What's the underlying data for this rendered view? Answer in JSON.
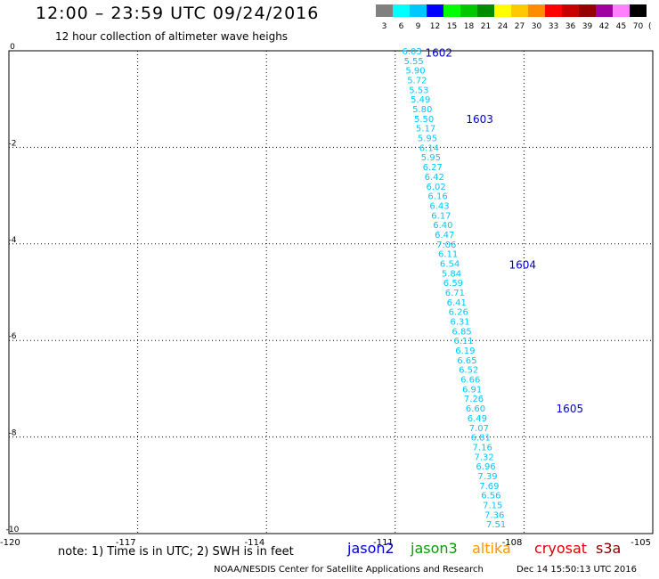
{
  "header": {
    "title": "12:00 – 23:59 UTC 09/24/2016",
    "subtitle": "12 hour collection of altimeter wave heighs"
  },
  "scale": {
    "unit": "(ft)",
    "levels": [
      {
        "label": "3",
        "color": "#808080"
      },
      {
        "label": "6",
        "color": "#00ffff"
      },
      {
        "label": "9",
        "color": "#00c8ff"
      },
      {
        "label": "12",
        "color": "#0000ff"
      },
      {
        "label": "15",
        "color": "#00ff00"
      },
      {
        "label": "18",
        "color": "#00c800"
      },
      {
        "label": "21",
        "color": "#008c00"
      },
      {
        "label": "24",
        "color": "#ffff00"
      },
      {
        "label": "27",
        "color": "#ffc800"
      },
      {
        "label": "30",
        "color": "#ff8c00"
      },
      {
        "label": "33",
        "color": "#ff0000"
      },
      {
        "label": "36",
        "color": "#c80000"
      },
      {
        "label": "39",
        "color": "#960000"
      },
      {
        "label": "42",
        "color": "#a000a0"
      },
      {
        "label": "45",
        "color": "#ff80ff"
      },
      {
        "label": "70",
        "color": "#000000"
      }
    ]
  },
  "chart_data": {
    "type": "scatter",
    "xlim": [
      -120,
      -105
    ],
    "ylim": [
      -10,
      0
    ],
    "x_ticks": [
      "-120",
      "-117",
      "-114",
      "-111",
      "-108",
      "-105"
    ],
    "y_ticks": [
      "0",
      "-2",
      "-4",
      "-6",
      "-8",
      "-10"
    ],
    "grid": true,
    "point_color": "#00c8ff",
    "time_label_color": "#0000c8",
    "points": [
      {
        "lon": -110.84,
        "lat": 0.0,
        "swh": "6.03"
      },
      {
        "lon": -110.8,
        "lat": -0.2,
        "swh": "5.55"
      },
      {
        "lon": -110.76,
        "lat": -0.4,
        "swh": "5.90"
      },
      {
        "lon": -110.72,
        "lat": -0.6,
        "swh": "5.72"
      },
      {
        "lon": -110.68,
        "lat": -0.8,
        "swh": "5.53"
      },
      {
        "lon": -110.64,
        "lat": -1.0,
        "swh": "5.49"
      },
      {
        "lon": -110.6,
        "lat": -1.2,
        "swh": "5.80"
      },
      {
        "lon": -110.56,
        "lat": -1.4,
        "swh": "5.50"
      },
      {
        "lon": -110.52,
        "lat": -1.6,
        "swh": "5.17"
      },
      {
        "lon": -110.48,
        "lat": -1.8,
        "swh": "5.95"
      },
      {
        "lon": -110.44,
        "lat": -2.0,
        "swh": "6.14"
      },
      {
        "lon": -110.4,
        "lat": -2.2,
        "swh": "5.95"
      },
      {
        "lon": -110.36,
        "lat": -2.4,
        "swh": "6.27"
      },
      {
        "lon": -110.32,
        "lat": -2.6,
        "swh": "6.42"
      },
      {
        "lon": -110.28,
        "lat": -2.8,
        "swh": "6.02"
      },
      {
        "lon": -110.24,
        "lat": -3.0,
        "swh": "6.16"
      },
      {
        "lon": -110.2,
        "lat": -3.2,
        "swh": "6.43"
      },
      {
        "lon": -110.16,
        "lat": -3.4,
        "swh": "6.17"
      },
      {
        "lon": -110.12,
        "lat": -3.6,
        "swh": "6.40"
      },
      {
        "lon": -110.08,
        "lat": -3.8,
        "swh": "6.47"
      },
      {
        "lon": -110.04,
        "lat": -4.0,
        "swh": "7.06"
      },
      {
        "lon": -110.0,
        "lat": -4.2,
        "swh": "6.11"
      },
      {
        "lon": -109.96,
        "lat": -4.4,
        "swh": "6.54"
      },
      {
        "lon": -109.92,
        "lat": -4.6,
        "swh": "5.84"
      },
      {
        "lon": -109.88,
        "lat": -4.8,
        "swh": "6.59"
      },
      {
        "lon": -109.84,
        "lat": -5.0,
        "swh": "6.71"
      },
      {
        "lon": -109.8,
        "lat": -5.2,
        "swh": "6.41"
      },
      {
        "lon": -109.76,
        "lat": -5.4,
        "swh": "6.26"
      },
      {
        "lon": -109.72,
        "lat": -5.6,
        "swh": "6.31"
      },
      {
        "lon": -109.68,
        "lat": -5.8,
        "swh": "6.85"
      },
      {
        "lon": -109.64,
        "lat": -6.0,
        "swh": "6.11"
      },
      {
        "lon": -109.6,
        "lat": -6.2,
        "swh": "6.19"
      },
      {
        "lon": -109.56,
        "lat": -6.4,
        "swh": "6.65"
      },
      {
        "lon": -109.52,
        "lat": -6.6,
        "swh": "6.52"
      },
      {
        "lon": -109.48,
        "lat": -6.8,
        "swh": "6.66"
      },
      {
        "lon": -109.44,
        "lat": -7.0,
        "swh": "6.91"
      },
      {
        "lon": -109.4,
        "lat": -7.2,
        "swh": "7.26"
      },
      {
        "lon": -109.36,
        "lat": -7.4,
        "swh": "6.60"
      },
      {
        "lon": -109.32,
        "lat": -7.6,
        "swh": "6.49"
      },
      {
        "lon": -109.28,
        "lat": -7.8,
        "swh": "7.07"
      },
      {
        "lon": -109.24,
        "lat": -8.0,
        "swh": "6.81"
      },
      {
        "lon": -109.2,
        "lat": -8.2,
        "swh": "7.16"
      },
      {
        "lon": -109.16,
        "lat": -8.4,
        "swh": "7.32"
      },
      {
        "lon": -109.12,
        "lat": -8.6,
        "swh": "6.96"
      },
      {
        "lon": -109.08,
        "lat": -8.8,
        "swh": "7.39"
      },
      {
        "lon": -109.04,
        "lat": -9.0,
        "swh": "7.69"
      },
      {
        "lon": -109.0,
        "lat": -9.2,
        "swh": "6.56"
      },
      {
        "lon": -108.96,
        "lat": -9.4,
        "swh": "7.15"
      },
      {
        "lon": -108.92,
        "lat": -9.6,
        "swh": "7.36"
      },
      {
        "lon": -108.88,
        "lat": -9.8,
        "swh": "7.51"
      }
    ],
    "time_labels": [
      {
        "text": "1602",
        "lon": -110.3,
        "lat": -0.03
      },
      {
        "text": "1603",
        "lon": -109.35,
        "lat": -1.4
      },
      {
        "text": "1604",
        "lon": -108.35,
        "lat": -4.42
      },
      {
        "text": "1605",
        "lon": -107.25,
        "lat": -7.4
      }
    ]
  },
  "footer": {
    "note": "note: 1) Time is in UTC; 2) SWH is in feet",
    "satellites": [
      {
        "name": "jason2",
        "color": "#0000d0"
      },
      {
        "name": "jason3",
        "color": "#00a000"
      },
      {
        "name": "altika",
        "color": "#ff9600"
      },
      {
        "name": "cryosat",
        "color": "#e00000"
      },
      {
        "name": "s3a",
        "color": "#8b0000"
      }
    ],
    "credit": "NOAA/NESDIS Center for Satellite Applications and Research",
    "timestamp": "Dec 14 15:50:13 UTC 2016"
  }
}
